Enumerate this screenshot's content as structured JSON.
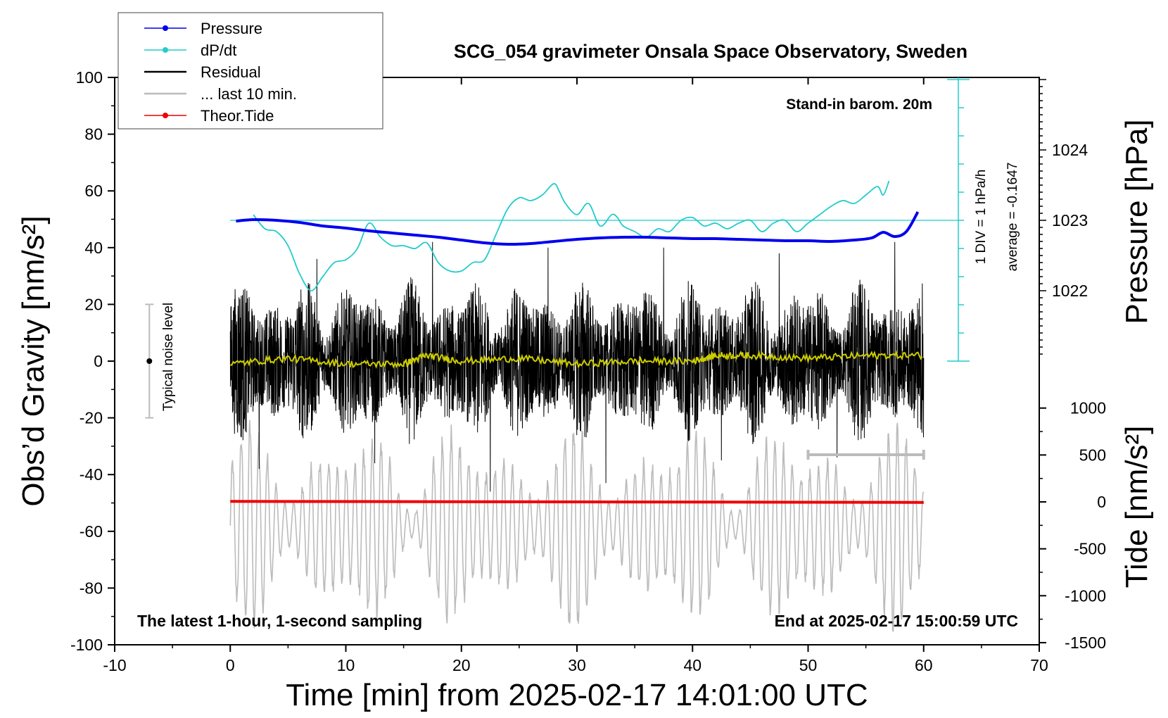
{
  "chart_data": {
    "type": "line",
    "title": "SCG_054 gravimeter Onsala Space Observatory, Sweden",
    "xlabel": "Time [min] from 2025-02-17 14:01:00 UTC",
    "ylabel_left": "Obs’d Gravity [nm/s²]",
    "ylabel_right_top": "Pressure [hPa]",
    "ylabel_right_bottom": "Tide [nm/s²]",
    "xlim": [
      -10,
      70
    ],
    "ylim": [
      -100,
      100
    ],
    "x_ticks": [
      "-10",
      "0",
      "10",
      "20",
      "30",
      "40",
      "50",
      "60",
      "70"
    ],
    "y_ticks": [
      "-100",
      "-80",
      "-60",
      "-40",
      "-20",
      "0",
      "20",
      "40",
      "60",
      "80",
      "100"
    ],
    "pressure_axis": {
      "ticks": [
        "1022",
        "1023",
        "1024"
      ],
      "range": [
        1021,
        1025
      ]
    },
    "tide_axis": {
      "ticks": [
        "-1500",
        "-1000",
        "-500",
        "0",
        "500",
        "1000"
      ],
      "range": [
        -1500,
        1000
      ]
    },
    "legend": [
      {
        "label": "Pressure",
        "color": "#0000ee",
        "marker": true
      },
      {
        "label": "dP/dt",
        "color": "#22cccc",
        "marker": true
      },
      {
        "label": "Residual",
        "color": "#000000",
        "marker": false
      },
      {
        "label": "... last 10 min.",
        "color": "#bbbbbb",
        "marker": false
      },
      {
        "label": "Theor.Tide",
        "color": "#ee0000",
        "marker": true
      }
    ],
    "annotations": {
      "barometer": "Stand-in barom. 20m",
      "dpdt_scale": "1 DIV = 1 hPa/h",
      "dpdt_average": "average = -0.1647",
      "noise": "Typical noise level",
      "bottom_left": "The latest 1-hour, 1-second sampling",
      "bottom_right": "End at 2025-02-17 15:00:59 UTC"
    },
    "series": [
      {
        "name": "Pressure",
        "axis": "pressure",
        "color": "#0000ee",
        "x": [
          0.5,
          2,
          4,
          6,
          8,
          10,
          12,
          14,
          16,
          18,
          20,
          22,
          24,
          26,
          28,
          30,
          32,
          34,
          36,
          38,
          40,
          42,
          44,
          46,
          48,
          50,
          52,
          54,
          55.5,
          56.5,
          57.5,
          58.5,
          59.5
        ],
        "values": [
          1022.99,
          1023.01,
          1023.0,
          1022.97,
          1022.92,
          1022.89,
          1022.85,
          1022.82,
          1022.79,
          1022.76,
          1022.72,
          1022.68,
          1022.66,
          1022.67,
          1022.7,
          1022.73,
          1022.75,
          1022.76,
          1022.76,
          1022.75,
          1022.74,
          1022.74,
          1022.73,
          1022.72,
          1022.71,
          1022.71,
          1022.7,
          1022.72,
          1022.75,
          1022.83,
          1022.77,
          1022.84,
          1023.12
        ]
      },
      {
        "name": "dP/dt",
        "axis": "dpdt",
        "color": "#22cccc",
        "x": [
          2,
          3,
          4,
          5,
          6,
          7,
          8,
          9,
          10,
          11,
          12,
          13,
          14,
          15,
          16,
          17,
          18,
          19,
          20,
          21,
          22,
          23,
          24,
          25,
          26,
          27,
          28,
          28.5,
          29,
          30,
          31,
          32,
          33,
          33.5,
          34,
          35,
          36,
          37,
          38,
          39,
          40,
          41,
          42,
          43,
          44,
          45,
          46,
          47,
          48,
          49,
          50,
          51,
          52,
          53,
          54,
          55,
          56,
          56.5,
          57
        ],
        "values": [
          5.2,
          4.7,
          4.6,
          4.1,
          3.1,
          2.5,
          3.0,
          3.5,
          3.6,
          4.0,
          4.9,
          4.4,
          4.1,
          4.1,
          4.0,
          4.2,
          3.5,
          3.2,
          3.2,
          3.5,
          3.6,
          4.5,
          5.4,
          5.8,
          5.7,
          5.9,
          6.3,
          6.0,
          5.6,
          5.2,
          5.6,
          4.8,
          5.2,
          5.1,
          4.8,
          4.6,
          4.4,
          4.7,
          4.6,
          5.0,
          5.1,
          4.8,
          4.9,
          4.7,
          4.9,
          5.0,
          4.6,
          4.9,
          5.0,
          4.6,
          4.9,
          5.2,
          5.5,
          5.7,
          5.6,
          5.9,
          6.2,
          5.9,
          6.4
        ]
      },
      {
        "name": "Residual",
        "axis": "gravity",
        "color": "#000000",
        "x_range": [
          0,
          60
        ],
        "noise_amplitude": [
          10,
          30
        ],
        "peaks": [
          -38,
          36,
          -36,
          42,
          -46,
          40,
          -43,
          40,
          -35,
          38,
          -34,
          42
        ]
      },
      {
        "name": "... last 10 min.",
        "axis": "gravity",
        "color": "#bbbbbb",
        "x_range": [
          0,
          60
        ],
        "offset": -50,
        "amplitude": [
          5,
          40
        ]
      },
      {
        "name": "Theor.Tide",
        "axis": "tide",
        "color": "#ee0000",
        "x": [
          0,
          30,
          60
        ],
        "values": [
          5,
          0,
          -5
        ]
      },
      {
        "name": "Smoothed residual",
        "axis": "gravity",
        "color": "#cccc00",
        "x": [
          0,
          5,
          10,
          15,
          17,
          20,
          25,
          30,
          35,
          40,
          42,
          45,
          50,
          55,
          60
        ],
        "values": [
          -1,
          1,
          -1,
          -1,
          2,
          0,
          1,
          -1,
          0,
          0,
          2,
          2,
          1,
          2,
          2
        ]
      }
    ],
    "noise_bar": {
      "x": -7,
      "ylow": -20,
      "yhigh": 20
    },
    "range_bar": {
      "x1": 50,
      "x2": 60,
      "y": -33
    }
  }
}
